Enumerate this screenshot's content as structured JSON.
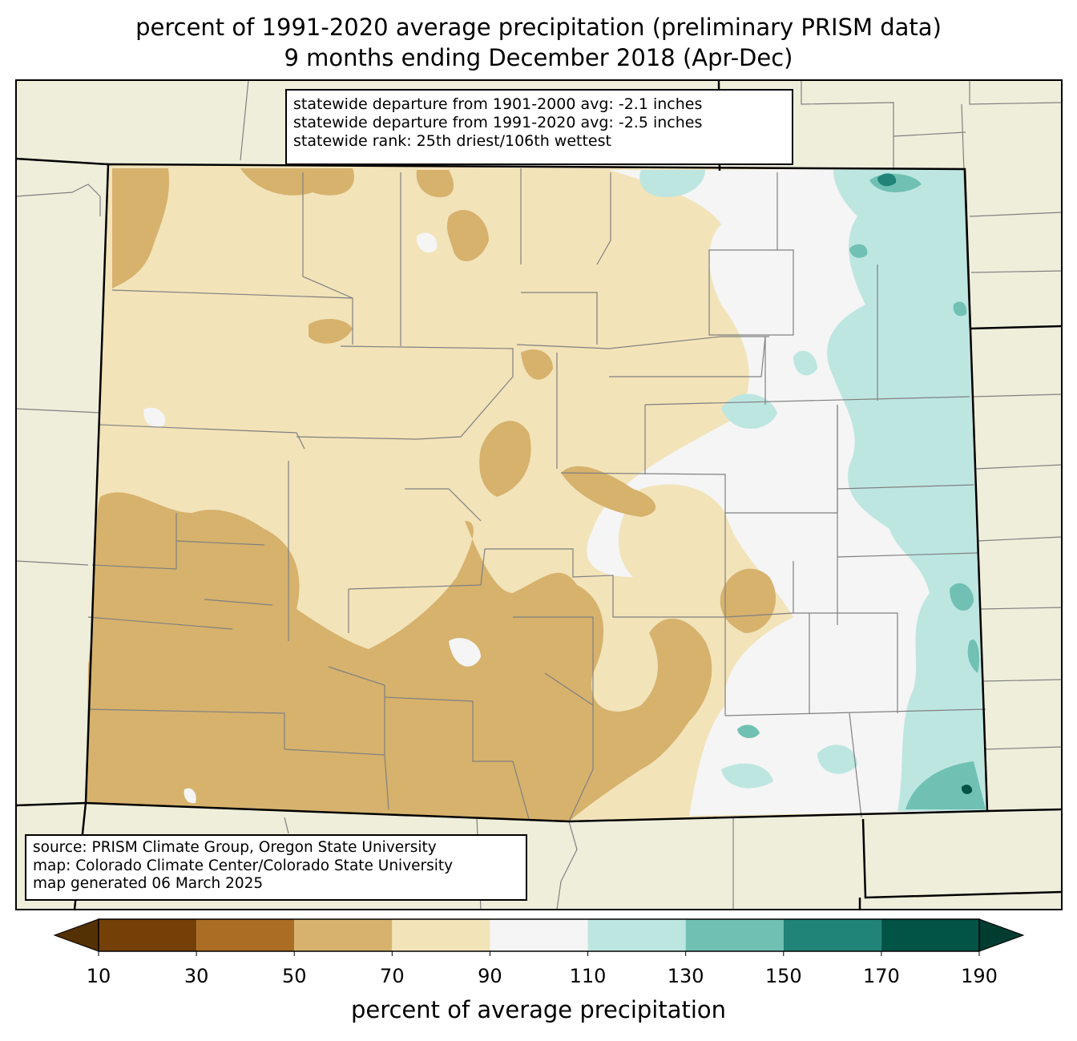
{
  "title": {
    "line1": "percent of 1991-2020 average precipitation (preliminary PRISM data)",
    "line2": "9 months ending December 2018 (Apr-Dec)"
  },
  "stats": {
    "line1": "statewide departure from 1901-2000 avg: -2.1 inches",
    "line2": "statewide departure from 1991-2020 avg: -2.5 inches",
    "line3": "statewide rank: 25th driest/106th wettest"
  },
  "source": {
    "line1": "source: PRISM Climate Group, Oregon State University",
    "line2": "map: Colorado Climate Center/Colorado State University",
    "line3": "map generated 06 March 2025"
  },
  "colorbar": {
    "label": "percent of average precipitation",
    "ticks": [
      "10",
      "30",
      "50",
      "70",
      "90",
      "110",
      "130",
      "150",
      "170",
      "190"
    ],
    "bins": [
      {
        "range": "10-30",
        "color": "#744008"
      },
      {
        "range": "30-50",
        "color": "#aa6d23"
      },
      {
        "range": "50-70",
        "color": "#d6b26d"
      },
      {
        "range": "70-90",
        "color": "#f2e3b9"
      },
      {
        "range": "90-110",
        "color": "#f4f5f4"
      },
      {
        "range": "110-130",
        "color": "#bde6e1"
      },
      {
        "range": "130-150",
        "color": "#70c1b3"
      },
      {
        "range": "150-170",
        "color": "#208478"
      },
      {
        "range": "170-190",
        "color": "#015446"
      }
    ],
    "under_color": "#543005",
    "over_color": "#003c30"
  },
  "colors": {
    "background_land": "#efeedb",
    "state_border": "#000000",
    "county_border": "#808080"
  }
}
